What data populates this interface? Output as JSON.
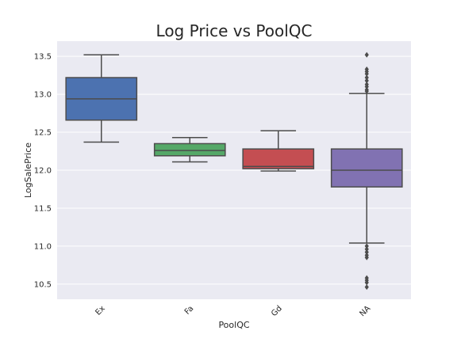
{
  "chart_data": {
    "type": "box",
    "title": "Log Price vs PoolQC",
    "xlabel": "PoolQC",
    "ylabel": "LogSalePrice",
    "categories": [
      "Ex",
      "Fa",
      "Gd",
      "NA"
    ],
    "ylim": [
      10.3,
      13.7
    ],
    "yticks": [
      10.5,
      11.0,
      11.5,
      12.0,
      12.5,
      13.0,
      13.5
    ],
    "ytick_labels": [
      "10.5",
      "11.0",
      "11.5",
      "12.0",
      "12.5",
      "13.0",
      "13.5"
    ],
    "grid": true,
    "colors": {
      "background": "#eaeaf2",
      "grid": "#ffffff",
      "line": "#4c4c4c",
      "boxes": [
        "#4c72b0",
        "#55a868",
        "#c44e52",
        "#8172b2"
      ]
    },
    "boxes": [
      {
        "category": "Ex",
        "whisker_low": 12.37,
        "q1": 12.66,
        "median": 12.94,
        "q3": 13.22,
        "whisker_high": 13.52,
        "outliers": []
      },
      {
        "category": "Fa",
        "whisker_low": 12.11,
        "q1": 12.19,
        "median": 12.26,
        "q3": 12.35,
        "whisker_high": 12.43,
        "outliers": []
      },
      {
        "category": "Gd",
        "whisker_low": 11.99,
        "q1": 12.02,
        "median": 12.05,
        "q3": 12.28,
        "whisker_high": 12.52,
        "outliers": []
      },
      {
        "category": "NA",
        "whisker_low": 11.04,
        "q1": 11.78,
        "median": 12.0,
        "q3": 12.28,
        "whisker_high": 13.01,
        "outliers": [
          10.46,
          10.52,
          10.55,
          10.58,
          10.85,
          10.88,
          10.92,
          10.96,
          11.0,
          13.04,
          13.06,
          13.1,
          13.13,
          13.18,
          13.22,
          13.27,
          13.3,
          13.33,
          13.52
        ]
      }
    ]
  }
}
